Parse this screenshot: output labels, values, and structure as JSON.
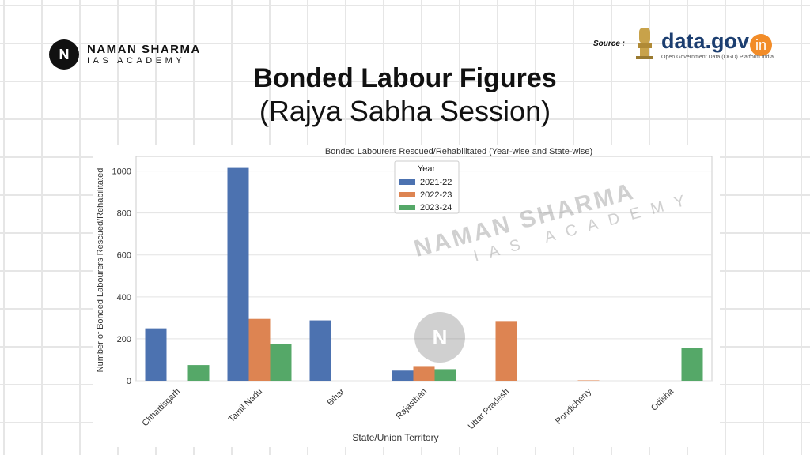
{
  "brand": {
    "logo_letter": "N",
    "name": "NAMAN SHARMA",
    "sub": "IAS ACADEMY"
  },
  "source": {
    "label": "Source :",
    "logo_text": "data.gov",
    "logo_in": "in",
    "tagline": "Open Government Data (OGD) Platform India"
  },
  "header": {
    "title": "Bonded Labour Figures",
    "subtitle": "(Rajya Sabha Session)"
  },
  "watermark": {
    "name": "NAMAN SHARMA",
    "sub": "IAS ACADEMY",
    "letter": "N"
  },
  "chart_data": {
    "type": "bar",
    "title": "Bonded Labourers Rescued/Rehabilitated (Year-wise and State-wise)",
    "xlabel": "State/Union Territory",
    "ylabel": "Number of Bonded Labourers Rescued/Rehabilitated",
    "categories": [
      "Chhattisgarh",
      "Tamil Nadu",
      "Bihar",
      "Rajasthan",
      "Uttar Pradesh",
      "Pondicherry",
      "Odisha"
    ],
    "series": [
      {
        "name": "2021-22",
        "color": "#4c72b0",
        "values": [
          250,
          1015,
          288,
          48,
          0,
          0,
          0
        ]
      },
      {
        "name": "2022-23",
        "color": "#dd8452",
        "values": [
          0,
          295,
          0,
          70,
          285,
          2,
          0
        ]
      },
      {
        "name": "2023-24",
        "color": "#55a868",
        "values": [
          75,
          175,
          0,
          55,
          0,
          0,
          155
        ]
      }
    ],
    "ylim": [
      0,
      1070
    ],
    "yticks": [
      "0",
      "200",
      "400",
      "600",
      "800",
      "1000"
    ],
    "legend": {
      "title": "Year",
      "placement": "top-center"
    },
    "grid": true
  }
}
